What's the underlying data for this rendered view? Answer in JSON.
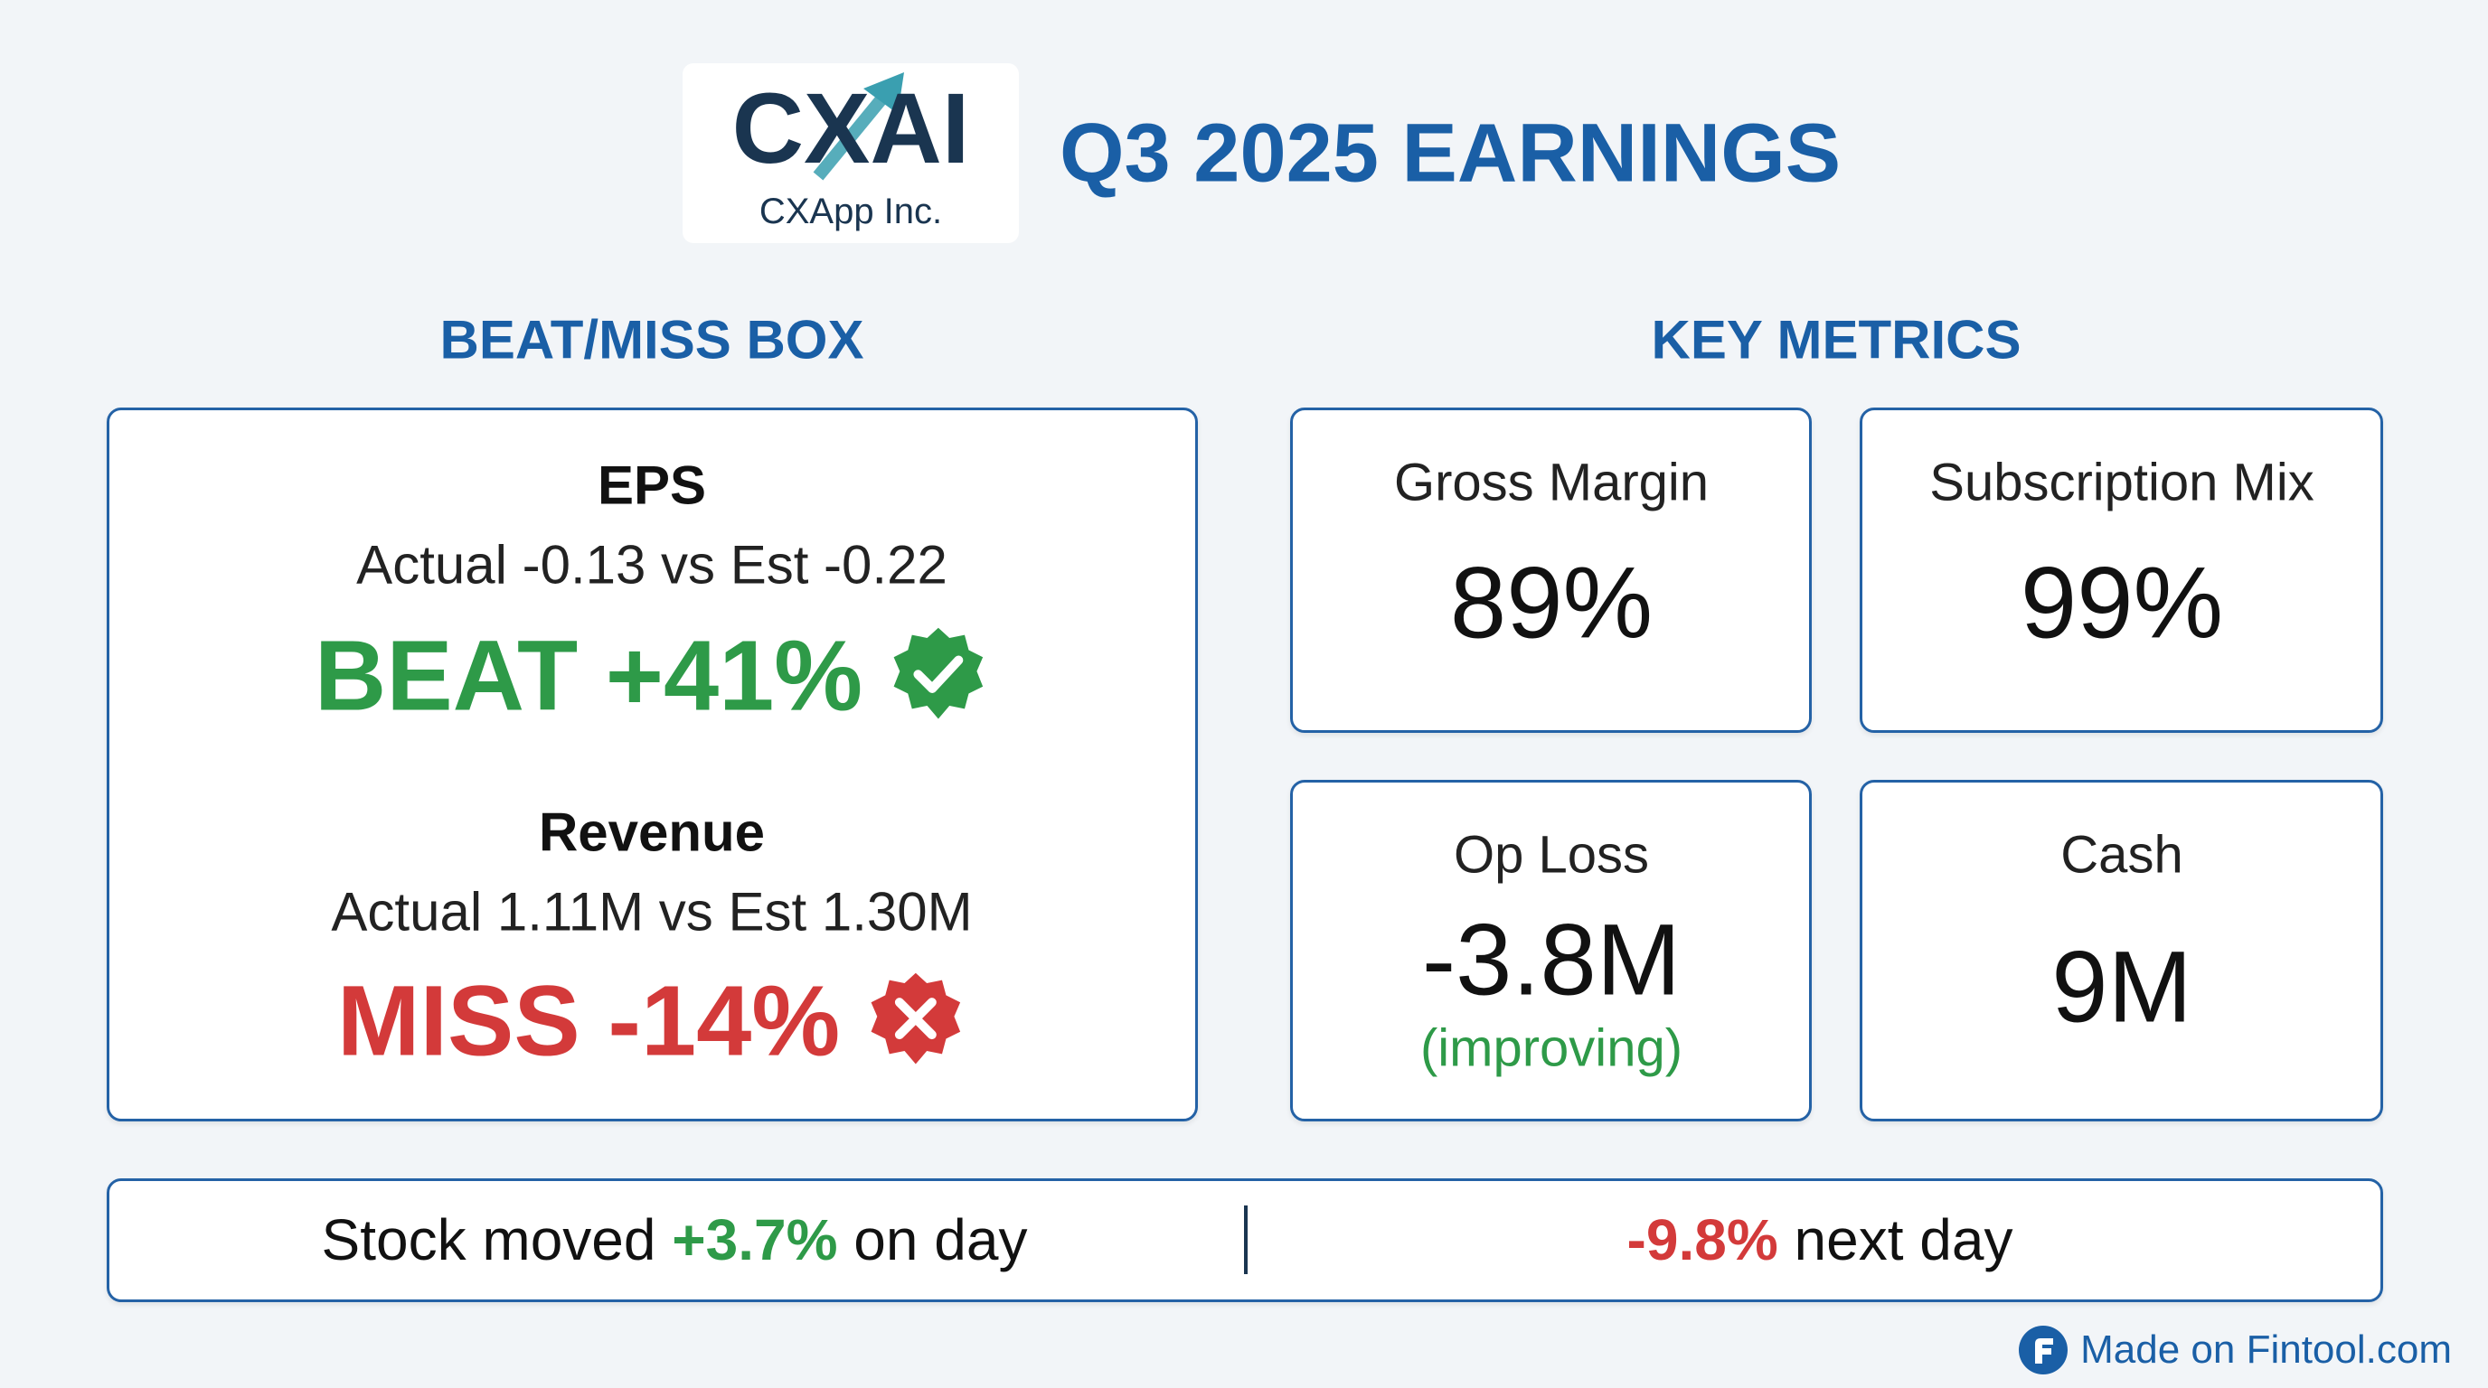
{
  "header": {
    "logo_mark": "CXAI",
    "logo_company": "CXApp Inc.",
    "title": "Q3 2025 EARNINGS"
  },
  "beat_miss": {
    "heading": "BEAT/MISS BOX",
    "eps": {
      "label": "EPS",
      "detail": "Actual -0.13 vs Est -0.22",
      "result": "BEAT +41%",
      "icon": "check-badge-icon",
      "color": "#2e9a48"
    },
    "revenue": {
      "label": "Revenue",
      "detail": "Actual 1.11M vs Est 1.30M",
      "result": "MISS -14%",
      "icon": "x-badge-icon",
      "color": "#d33a3a"
    }
  },
  "key_metrics": {
    "heading": "KEY METRICS",
    "cards": [
      {
        "label": "Gross Margin",
        "value": "89%"
      },
      {
        "label": "Subscription Mix",
        "value": "99%"
      },
      {
        "label": "Op Loss",
        "value": "-3.8M",
        "note": "(improving)"
      },
      {
        "label": "Cash",
        "value": "9M"
      }
    ]
  },
  "stock": {
    "day_prefix": "Stock moved ",
    "day_change": "+3.7%",
    "day_suffix": " on day",
    "next_change": "-9.8%",
    "next_suffix": " next day"
  },
  "footer": {
    "text": "Made on Fintool.com"
  },
  "colors": {
    "accent": "#1a5fa6",
    "positive": "#2e9a48",
    "negative": "#d33a3a"
  }
}
